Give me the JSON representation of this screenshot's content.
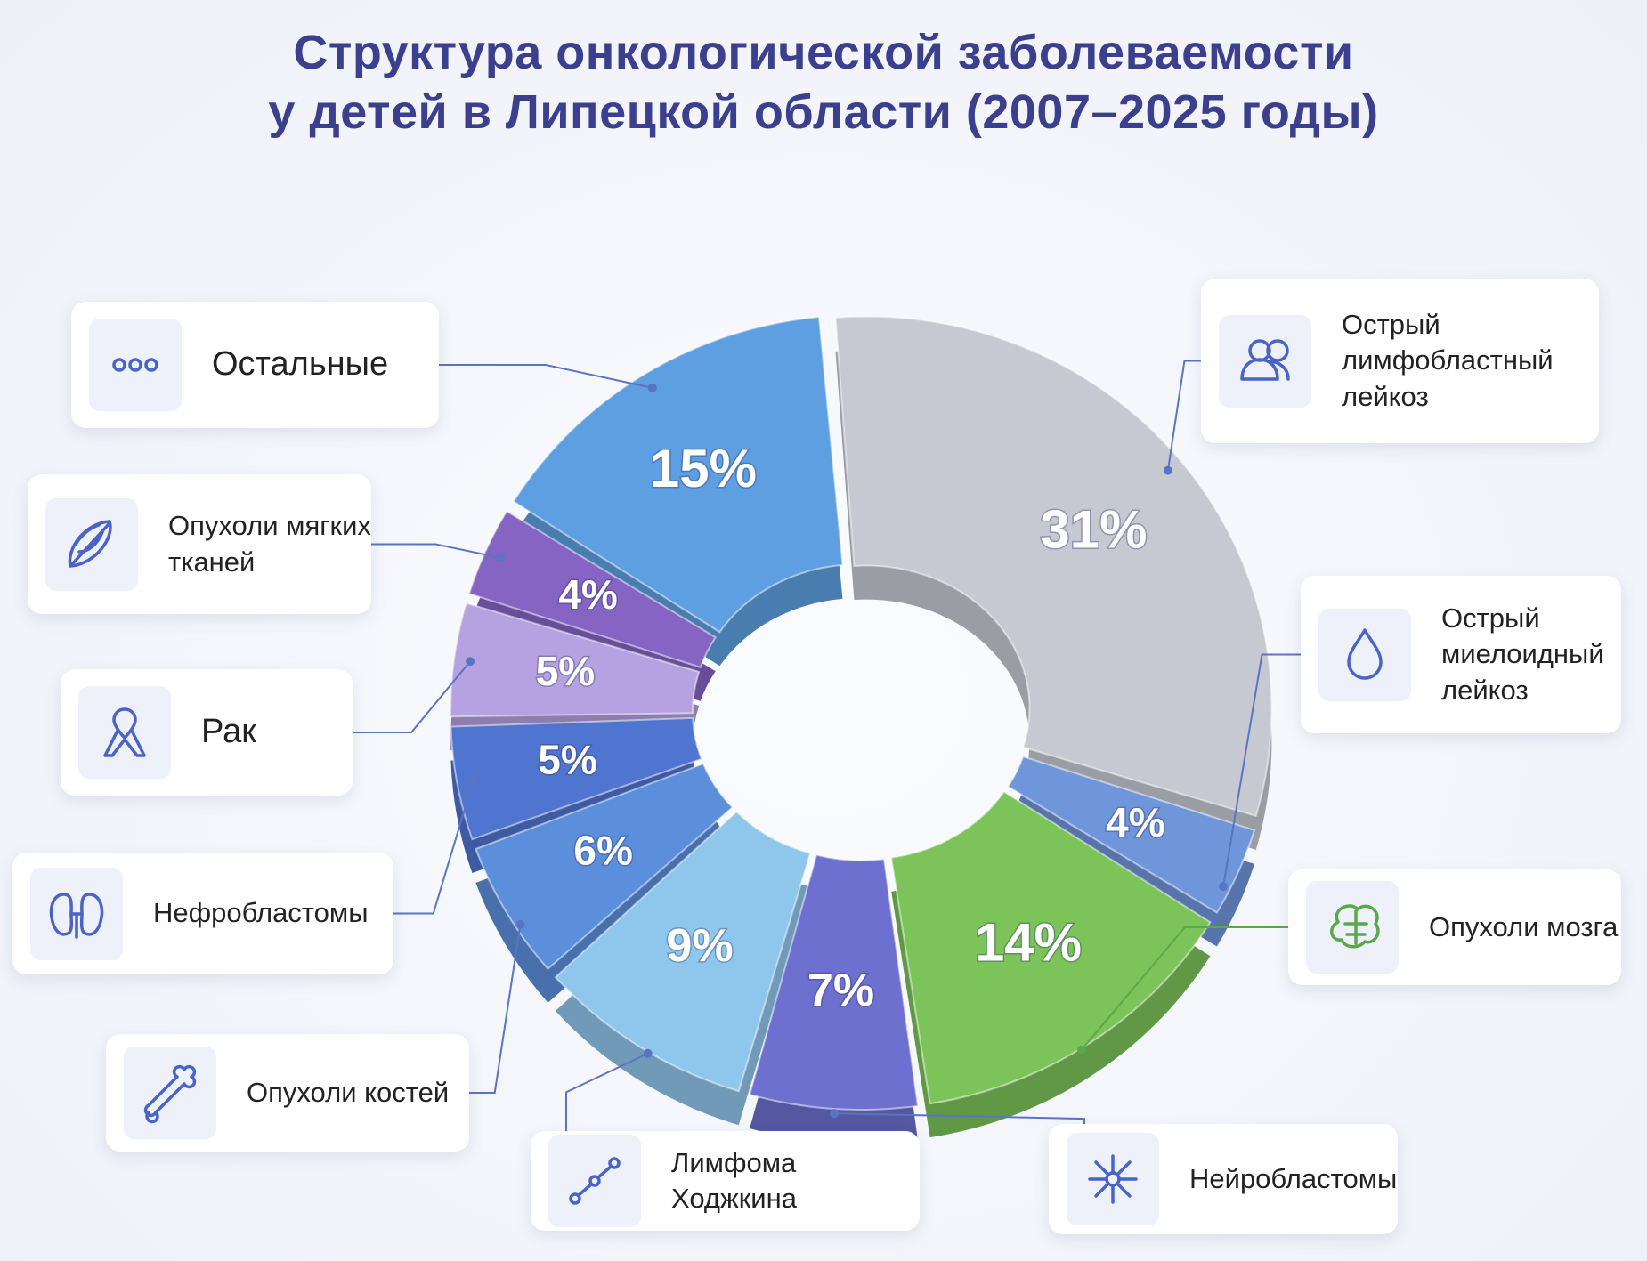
{
  "chart_data": {
    "type": "pie",
    "title": [
      "Структура онкологической заболеваемости",
      "у детей в Липецкой области (2007–2025 годы)"
    ],
    "categories": [
      "Острый лимфобластный лейкоз",
      "Острый миелоидный лейкоз",
      "Опухоли мозга",
      "Нейробластомы",
      "Лимфома Ходжкина",
      "Опухоли костей",
      "Нефробластомы",
      "Рак",
      "Опухоли мягких тканей",
      "Остальные"
    ],
    "values": [
      31,
      4,
      14,
      7,
      9,
      6,
      5,
      5,
      4,
      15
    ],
    "value_labels": [
      "31%",
      "4%",
      "14%",
      "7%",
      "9%",
      "6%",
      "5%",
      "5%",
      "4%",
      "15%"
    ],
    "colors": [
      "#c6c9d1",
      "#6f95db",
      "#7cc35a",
      "#6d70cf",
      "#8fc6ec",
      "#5b8fdc",
      "#4f75d0",
      "#b6a2e0",
      "#8564c4",
      "#5d9fe0"
    ]
  }
}
